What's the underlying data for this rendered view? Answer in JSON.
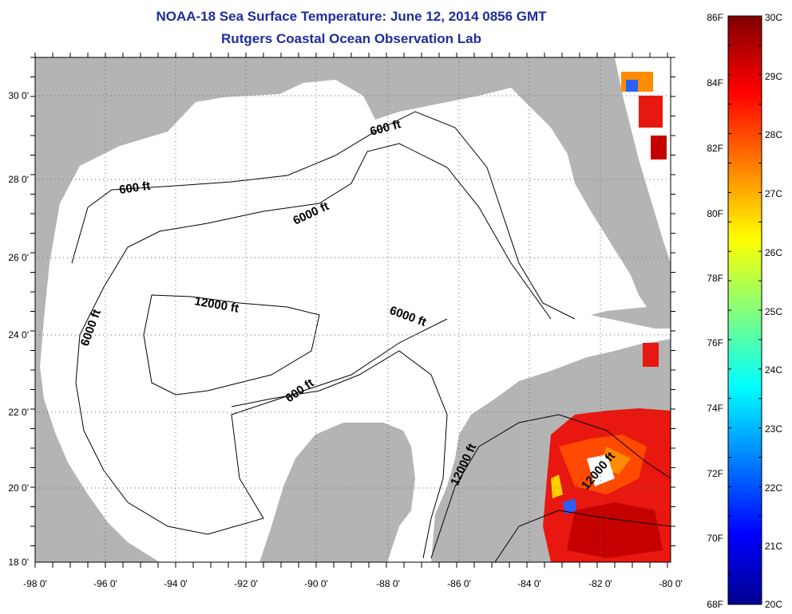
{
  "header": {
    "title": "NOAA-18 Sea Surface Temperature:  June 12, 2014 0856 GMT",
    "subtitle": "Rutgers Coastal Ocean Observation Lab"
  },
  "map": {
    "lon_labels": [
      "-98 0'",
      "-96 0'",
      "-94 0'",
      "-92 0'",
      "-90 0'",
      "-88 0'",
      "-86 0'",
      "-84 0'",
      "-82 0'",
      "-80 0'"
    ],
    "lat_labels": [
      "30 0'",
      "28 0'",
      "26 0'",
      "24 0'",
      "22 0'",
      "20 0'",
      "18 0'"
    ],
    "lon_range": [
      -98,
      -80
    ],
    "lat_range": [
      18,
      31
    ],
    "contour_labels": [
      "600 ft",
      "600 ft",
      "6000 ft",
      "12000 ft",
      "6000 ft",
      "6000 ft",
      "600 ft",
      "12000 ft",
      "12000 ft"
    ],
    "land_color": "#b4b4b4",
    "no_data_color": "#ffffff",
    "grid": "dotted"
  },
  "colorbar": {
    "fahrenheit_labels": [
      "86F",
      "84F",
      "82F",
      "80F",
      "78F",
      "76F",
      "74F",
      "72F",
      "70F",
      "68F"
    ],
    "celsius_labels": [
      "30C",
      "29C",
      "28C",
      "27C",
      "26C",
      "25C",
      "24C",
      "23C",
      "22C",
      "21C",
      "20C"
    ],
    "range_c": [
      20,
      30
    ],
    "colors": [
      "#00008f",
      "#0000ff",
      "#00ffff",
      "#ffff00",
      "#ff0000",
      "#800000"
    ]
  }
}
